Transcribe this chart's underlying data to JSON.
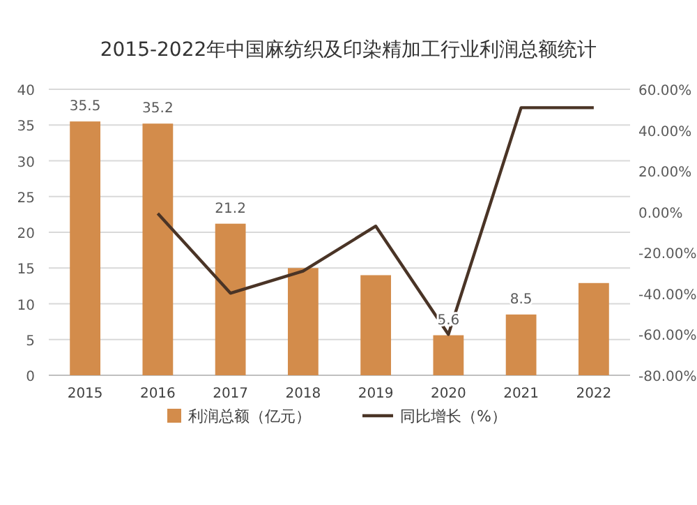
{
  "chart_data": {
    "type": "bar",
    "title": "2015-2022年中国麻纺织及印染精加工行业利润总额统计",
    "categories": [
      "2015",
      "2016",
      "2017",
      "2018",
      "2019",
      "2020",
      "2021",
      "2022"
    ],
    "series": [
      {
        "name": "利润总额（亿元）",
        "color": "#d38c4b",
        "values": [
          35.5,
          35.2,
          21.2,
          15.0,
          14.0,
          5.6,
          8.5,
          12.9
        ],
        "value_labels": [
          "35.5",
          "35.2",
          "21.2",
          null,
          null,
          "5.6",
          "8.5",
          null
        ]
      },
      {
        "name": "同比增长（%）",
        "type": "line",
        "axis": "y2",
        "color": "#4a3426",
        "values": [
          null,
          -0.8,
          -39.8,
          -29,
          -7,
          -60,
          51,
          51
        ]
      }
    ],
    "ylim": [
      0,
      40
    ],
    "yticks": [
      0,
      5,
      10,
      15,
      20,
      25,
      30,
      35,
      40
    ],
    "y2lim": [
      -80,
      60
    ],
    "y2ticks": [
      {
        "value": -80,
        "label": "-80.00%"
      },
      {
        "value": -60,
        "label": "-60.00%"
      },
      {
        "value": -40,
        "label": "-40.00%"
      },
      {
        "value": -20,
        "label": "-20.00%"
      },
      {
        "value": 0,
        "label": "0.00%"
      },
      {
        "value": 20,
        "label": "20.00%"
      },
      {
        "value": 40,
        "label": "40.00%"
      },
      {
        "value": 60,
        "label": "60.00%"
      }
    ],
    "grid": "y",
    "legend": "bottom",
    "marker": "none"
  }
}
